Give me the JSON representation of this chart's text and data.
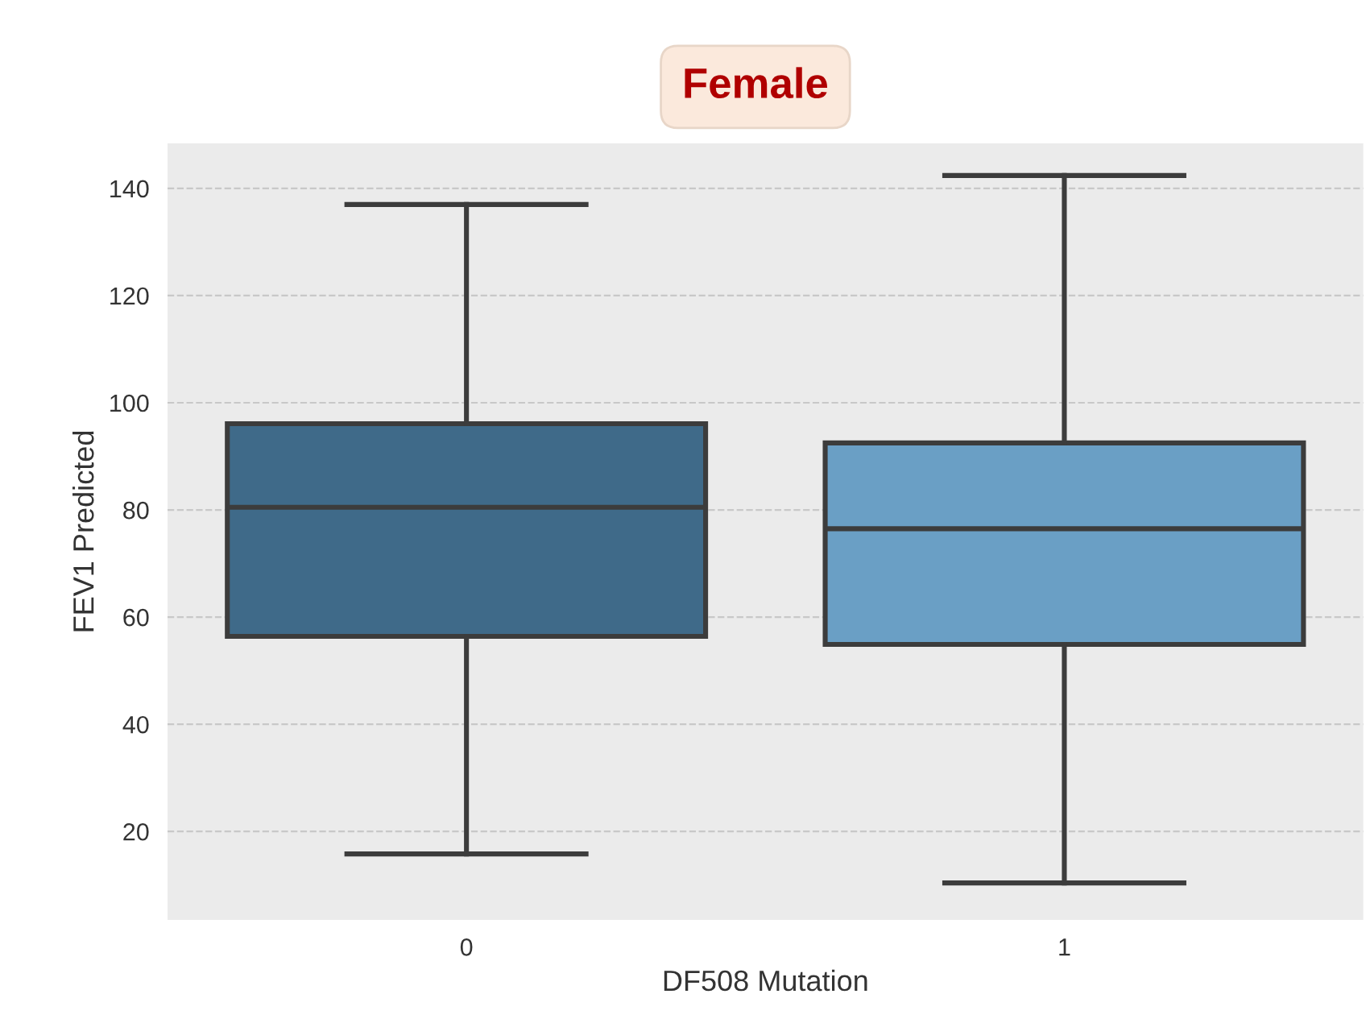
{
  "chart_data": {
    "type": "box",
    "title": "Female",
    "xlabel": "DF508 Mutation",
    "ylabel": "FEV1 Predicted",
    "categories": [
      "0",
      "1"
    ],
    "colors": [
      "#3f6a89",
      "#6a9fc5"
    ],
    "boxes": [
      {
        "low": 15.8,
        "q1": 56.4,
        "median": 80.5,
        "q3": 96.1,
        "high": 137
      },
      {
        "low": 10.4,
        "q1": 54.9,
        "median": 76.5,
        "q3": 92.5,
        "high": 142.4
      }
    ],
    "ylim": [
      3.5,
      148.4
    ],
    "yticks": [
      20,
      40,
      60,
      80,
      100,
      120,
      140
    ],
    "grid": "y"
  }
}
